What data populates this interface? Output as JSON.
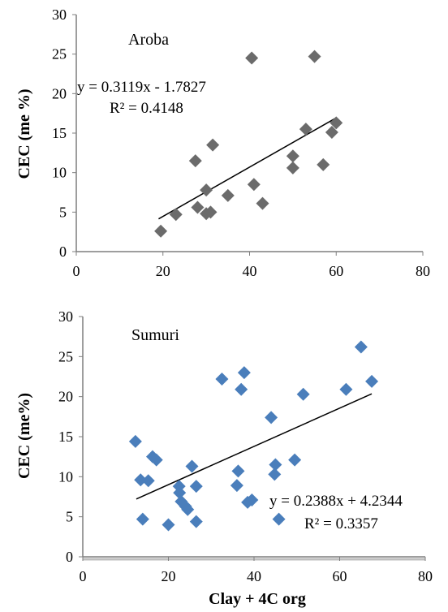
{
  "chart_data": [
    {
      "type": "scatter",
      "panel_label": "Aroba",
      "ylabel": "CEC (me %)",
      "xlabel": "",
      "xlim": [
        0,
        80
      ],
      "ylim": [
        0,
        30
      ],
      "x_ticks": [
        0,
        20,
        40,
        60,
        80
      ],
      "y_ticks": [
        0,
        5,
        10,
        15,
        20,
        25,
        30
      ],
      "marker_color": "#6b6b6b",
      "trendline": {
        "slope": 0.3119,
        "intercept": -1.7827,
        "x_range": [
          19,
          60
        ]
      },
      "equation_text": "y = 0.3119x - 1.7827",
      "r2_text": "R² = 0.4148",
      "series": [
        {
          "points": [
            {
              "x": 19.5,
              "y": 2.6
            },
            {
              "x": 23,
              "y": 4.7
            },
            {
              "x": 27.5,
              "y": 11.5
            },
            {
              "x": 28,
              "y": 5.6
            },
            {
              "x": 30,
              "y": 7.8
            },
            {
              "x": 30,
              "y": 4.8
            },
            {
              "x": 31,
              "y": 5.0
            },
            {
              "x": 31.5,
              "y": 13.5
            },
            {
              "x": 35,
              "y": 7.1
            },
            {
              "x": 40.5,
              "y": 24.5
            },
            {
              "x": 41,
              "y": 8.5
            },
            {
              "x": 43,
              "y": 6.1
            },
            {
              "x": 50,
              "y": 12.1
            },
            {
              "x": 50,
              "y": 10.6
            },
            {
              "x": 53,
              "y": 15.5
            },
            {
              "x": 55,
              "y": 24.7
            },
            {
              "x": 57,
              "y": 11.0
            },
            {
              "x": 59,
              "y": 15.1
            },
            {
              "x": 60,
              "y": 16.3
            }
          ]
        }
      ]
    },
    {
      "type": "scatter",
      "panel_label": "Sumuri",
      "ylabel": "CEC (me%)",
      "xlabel": "Clay + 4C org",
      "xlim": [
        0,
        80
      ],
      "ylim": [
        0,
        30
      ],
      "x_ticks": [
        0,
        20,
        40,
        60,
        80
      ],
      "y_ticks": [
        0,
        5,
        10,
        15,
        20,
        25,
        30
      ],
      "marker_color": "#4a7ebb",
      "trendline": {
        "slope": 0.2388,
        "intercept": 4.2344,
        "x_range": [
          12.5,
          67.5
        ]
      },
      "equation_text": "y = 0.2388x + 4.2344",
      "r2_text": "R² = 0.3357",
      "series": [
        {
          "points": [
            {
              "x": 12.3,
              "y": 14.4
            },
            {
              "x": 13.5,
              "y": 9.6
            },
            {
              "x": 14,
              "y": 4.7
            },
            {
              "x": 15.3,
              "y": 9.5
            },
            {
              "x": 16.3,
              "y": 12.5
            },
            {
              "x": 17.2,
              "y": 12.1
            },
            {
              "x": 20,
              "y": 4.0
            },
            {
              "x": 22.5,
              "y": 8.8
            },
            {
              "x": 22.6,
              "y": 8.0
            },
            {
              "x": 23,
              "y": 6.9
            },
            {
              "x": 24,
              "y": 6.3
            },
            {
              "x": 24.5,
              "y": 5.9
            },
            {
              "x": 25.5,
              "y": 11.3
            },
            {
              "x": 26.5,
              "y": 8.8
            },
            {
              "x": 26.5,
              "y": 4.4
            },
            {
              "x": 32.5,
              "y": 22.2
            },
            {
              "x": 36,
              "y": 8.9
            },
            {
              "x": 36.3,
              "y": 10.7
            },
            {
              "x": 37,
              "y": 20.9
            },
            {
              "x": 37.7,
              "y": 23.0
            },
            {
              "x": 38.5,
              "y": 6.8
            },
            {
              "x": 39.5,
              "y": 7.1
            },
            {
              "x": 44,
              "y": 17.4
            },
            {
              "x": 44.8,
              "y": 10.3
            },
            {
              "x": 45,
              "y": 11.5
            },
            {
              "x": 45.8,
              "y": 4.7
            },
            {
              "x": 49.5,
              "y": 12.1
            },
            {
              "x": 51.5,
              "y": 20.3
            },
            {
              "x": 61.5,
              "y": 20.9
            },
            {
              "x": 65,
              "y": 26.2
            },
            {
              "x": 67.5,
              "y": 21.9
            }
          ]
        }
      ]
    }
  ]
}
